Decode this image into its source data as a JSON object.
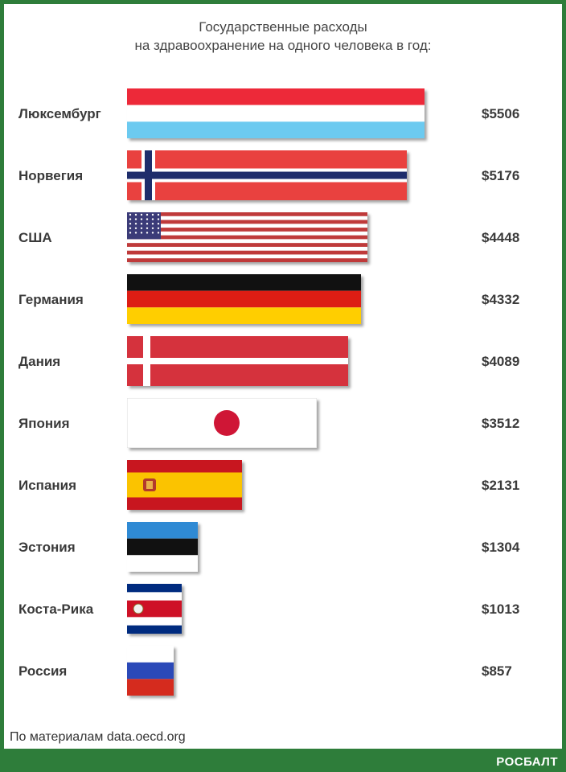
{
  "source": "По материалам data.oecd.org",
  "brand": "РОСБАЛТ",
  "chart_data": {
    "type": "bar",
    "orientation": "horizontal",
    "title": "Государственные расходы\nна здравоохранение на одного человека в год:",
    "title_lines": [
      "Государственные расходы",
      "на здравоохранение на одного человека в год:"
    ],
    "categories": [
      "Люксембург",
      "Норвегия",
      "США",
      "Германия",
      "Дания",
      "Япония",
      "Испания",
      "Эстония",
      "Коста-Рика",
      "Россия"
    ],
    "values": [
      5506,
      5176,
      4448,
      4332,
      4089,
      3512,
      2131,
      1304,
      1013,
      857
    ],
    "value_labels": [
      "$5506",
      "$5176",
      "$4448",
      "$4332",
      "$4089",
      "$3512",
      "$2131",
      "$1304",
      "$1013",
      "$857"
    ],
    "flags": [
      "luxembourg-flag",
      "norway-flag",
      "usa-flag",
      "germany-flag",
      "denmark-flag",
      "japan-flag",
      "spain-flag",
      "estonia-flag",
      "costa-rica-flag",
      "russia-flag"
    ],
    "xlim": [
      0,
      5506
    ],
    "grid": false,
    "legend": "none"
  }
}
